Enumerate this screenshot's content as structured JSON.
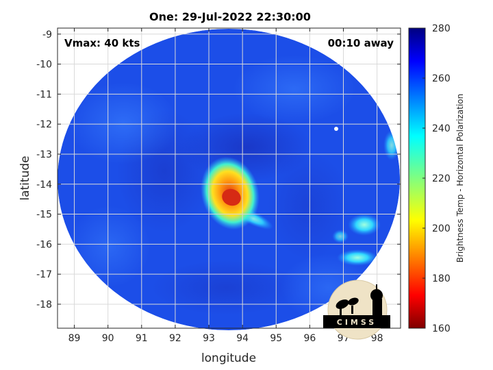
{
  "chart_data": {
    "type": "heatmap",
    "title": "One: 29-Jul-2022 22:30:00",
    "xlabel": "longitude",
    "ylabel": "latitude",
    "xlim": [
      88.5,
      98.7
    ],
    "ylim": [
      -18.8,
      -8.8
    ],
    "xticks": [
      "89",
      "90",
      "91",
      "92",
      "93",
      "94",
      "95",
      "96",
      "97",
      "98"
    ],
    "xtick_values": [
      89,
      90,
      91,
      92,
      93,
      94,
      95,
      96,
      97,
      98
    ],
    "yticks": [
      "-9",
      "-10",
      "-11",
      "-12",
      "-13",
      "-14",
      "-15",
      "-16",
      "-17",
      "-18"
    ],
    "ytick_values": [
      -9,
      -10,
      -11,
      -12,
      -13,
      -14,
      -15,
      -16,
      -17,
      -18
    ],
    "grid": true,
    "annotations": {
      "vmax": "Vmax: 40 kts",
      "time_offset": "00:10 away"
    },
    "colorbar": {
      "label": "Brightness Temp - Horizontal Polarization",
      "range": [
        160,
        280
      ],
      "ticks": [
        "280",
        "260",
        "240",
        "220",
        "200",
        "180",
        "160"
      ],
      "tick_values": [
        280,
        260,
        240,
        220,
        200,
        180,
        160
      ],
      "colormap": "jet"
    },
    "swath": {
      "center_lon": 93.55,
      "center_lat": -13.75,
      "background_tb": 262
    },
    "features": [
      {
        "name": "convective core",
        "lon": 93.7,
        "lat": -14.4,
        "min_tb": 190
      },
      {
        "name": "eastern rain band",
        "lon": 97.6,
        "lat": -15.4,
        "min_tb": 236
      },
      {
        "name": "southeastern rain band",
        "lon": 97.5,
        "lat": -16.5,
        "min_tb": 228
      },
      {
        "name": "northeastern edge band",
        "lon": 98.4,
        "lat": -12.8,
        "min_tb": 240
      }
    ],
    "logo": "CIMSS"
  }
}
